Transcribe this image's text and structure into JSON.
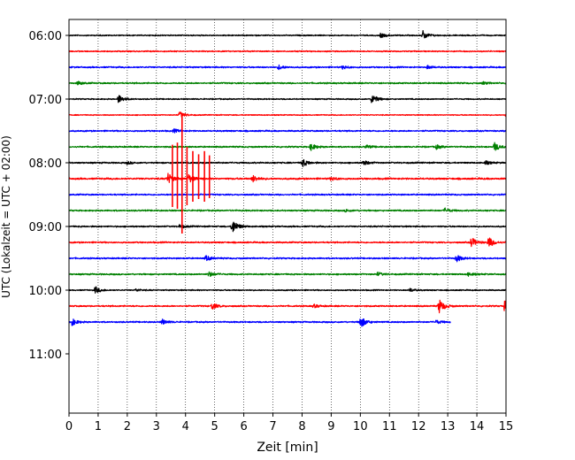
{
  "chart_data": {
    "type": "line",
    "title": "",
    "xlabel": "Zeit  [min]",
    "ylabel": "UTC (Lokalzeit = UTC + 02:00)",
    "xlim": [
      0,
      15
    ],
    "x_ticks": [
      0,
      1,
      2,
      3,
      4,
      5,
      6,
      7,
      8,
      9,
      10,
      11,
      12,
      13,
      14,
      15
    ],
    "y_tick_labels": [
      "06:00",
      "07:00",
      "08:00",
      "09:00",
      "10:00",
      "11:00"
    ],
    "y_tick_hours": [
      0,
      1,
      2,
      3,
      4,
      5
    ],
    "trace_interval_min": 15,
    "vertical_grid": true,
    "grid_style": "dotted",
    "color_cycle": [
      "#000000",
      "#ff0000",
      "#0000ff",
      "#008000"
    ],
    "traces": [
      {
        "start": "06:00",
        "end_min": 15,
        "noise": 0.25,
        "events": [
          {
            "t": 10.7,
            "amp": 0.5
          },
          {
            "t": 12.15,
            "amp": 1.0
          }
        ]
      },
      {
        "start": "06:15",
        "end_min": 15,
        "noise": 0.25,
        "events": []
      },
      {
        "start": "06:30",
        "end_min": 15,
        "noise": 0.3,
        "events": [
          {
            "t": 7.2,
            "amp": 0.5
          },
          {
            "t": 9.4,
            "amp": 0.4
          },
          {
            "t": 12.3,
            "amp": 0.4
          }
        ]
      },
      {
        "start": "06:45",
        "end_min": 15,
        "noise": 0.3,
        "events": [
          {
            "t": 0.3,
            "amp": 0.4
          },
          {
            "t": 14.2,
            "amp": 0.3
          }
        ]
      },
      {
        "start": "07:00",
        "end_min": 15,
        "noise": 0.25,
        "events": [
          {
            "t": 1.7,
            "amp": 1.0
          },
          {
            "t": 10.4,
            "amp": 1.2
          }
        ]
      },
      {
        "start": "07:15",
        "end_min": 15,
        "noise": 0.2,
        "events": [
          {
            "t": 3.8,
            "amp": 0.8
          },
          {
            "t": 15.0,
            "amp": 0.6
          }
        ]
      },
      {
        "start": "07:30",
        "end_min": 15,
        "noise": 0.3,
        "events": [
          {
            "t": 3.6,
            "amp": 0.4
          }
        ]
      },
      {
        "start": "07:45",
        "end_min": 15,
        "noise": 0.3,
        "events": [
          {
            "t": 8.3,
            "amp": 0.8
          },
          {
            "t": 10.2,
            "amp": 0.4
          },
          {
            "t": 12.6,
            "amp": 0.5
          },
          {
            "t": 14.6,
            "amp": 1.0
          }
        ]
      },
      {
        "start": "08:00",
        "end_min": 15,
        "noise": 0.3,
        "events": [
          {
            "t": 2.0,
            "amp": 0.3
          },
          {
            "t": 8.0,
            "amp": 1.0
          },
          {
            "t": 10.1,
            "amp": 0.6
          },
          {
            "t": 14.3,
            "amp": 0.4
          }
        ]
      },
      {
        "start": "08:15",
        "end_min": 15,
        "noise": 0.35,
        "events": [
          {
            "t": 3.4,
            "amp": 1.2
          },
          {
            "t": 4.1,
            "amp": 1.0
          },
          {
            "t": 6.3,
            "amp": 0.8
          },
          {
            "t": 9.0,
            "amp": 0.4
          }
        ]
      },
      {
        "start": "08:30",
        "end_min": 15,
        "noise": 0.3,
        "events": []
      },
      {
        "start": "08:45",
        "end_min": 15,
        "noise": 0.3,
        "events": [
          {
            "t": 9.5,
            "amp": 0.3
          },
          {
            "t": 12.9,
            "amp": 0.5
          }
        ]
      },
      {
        "start": "09:00",
        "end_min": 15,
        "noise": 0.3,
        "events": [
          {
            "t": 5.6,
            "amp": 1.8
          },
          {
            "t": 3.8,
            "amp": 0.4
          }
        ]
      },
      {
        "start": "09:15",
        "end_min": 15,
        "noise": 0.3,
        "events": [
          {
            "t": 13.8,
            "amp": 1.2
          },
          {
            "t": 14.4,
            "amp": 1.3
          }
        ]
      },
      {
        "start": "09:30",
        "end_min": 15,
        "noise": 0.3,
        "events": [
          {
            "t": 4.7,
            "amp": 0.6
          },
          {
            "t": 13.3,
            "amp": 0.8
          }
        ]
      },
      {
        "start": "09:45",
        "end_min": 15,
        "noise": 0.3,
        "events": [
          {
            "t": 4.8,
            "amp": 0.6
          },
          {
            "t": 10.6,
            "amp": 0.4
          },
          {
            "t": 13.7,
            "amp": 0.4
          }
        ]
      },
      {
        "start": "10:00",
        "end_min": 15,
        "noise": 0.25,
        "events": [
          {
            "t": 0.9,
            "amp": 0.8
          },
          {
            "t": 2.3,
            "amp": 0.3
          },
          {
            "t": 11.7,
            "amp": 0.4
          }
        ]
      },
      {
        "start": "10:15",
        "end_min": 15,
        "noise": 0.3,
        "events": [
          {
            "t": 4.9,
            "amp": 0.8
          },
          {
            "t": 12.7,
            "amp": 1.7
          },
          {
            "t": 14.95,
            "amp": 1.2
          },
          {
            "t": 8.4,
            "amp": 0.4
          }
        ]
      },
      {
        "start": "10:30",
        "end_min": 13.1,
        "noise": 0.3,
        "events": [
          {
            "t": 0.1,
            "amp": 0.8
          },
          {
            "t": 3.2,
            "amp": 0.6
          },
          {
            "t": 10.0,
            "amp": 1.4
          },
          {
            "t": 12.6,
            "amp": 0.4
          }
        ]
      }
    ],
    "spikes": [
      {
        "trace": 9,
        "t": 3.55,
        "amp": 3.2
      },
      {
        "trace": 9,
        "t": 3.72,
        "amp": 3.4
      },
      {
        "trace": 9,
        "t": 3.88,
        "amp": 6.2
      },
      {
        "trace": 9,
        "t": 4.05,
        "amp": 3.0
      },
      {
        "trace": 9,
        "t": 4.25,
        "amp": 2.6
      },
      {
        "trace": 9,
        "t": 4.45,
        "amp": 2.3
      },
      {
        "trace": 9,
        "t": 4.65,
        "amp": 2.6
      },
      {
        "trace": 9,
        "t": 4.82,
        "amp": 2.2
      }
    ]
  }
}
